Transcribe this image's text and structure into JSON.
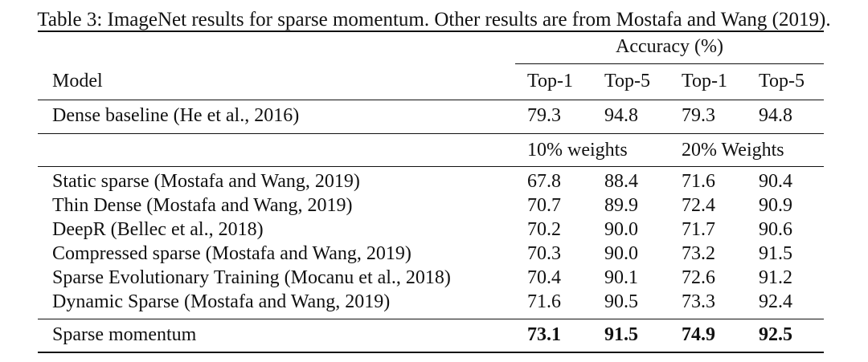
{
  "caption": "Table 3: ImageNet results for sparse momentum. Other results are from Mostafa and Wang (2019).",
  "header": {
    "accuracy_label": "Accuracy (%)",
    "model_label": "Model",
    "cols": [
      "Top-1",
      "Top-5",
      "Top-1",
      "Top-5"
    ]
  },
  "baseline": {
    "model": "Dense baseline (He et al., 2016)",
    "values": [
      "79.3",
      "94.8",
      "79.3",
      "94.8"
    ]
  },
  "groups": {
    "weights_10": "10% weights",
    "weights_20": "20% Weights"
  },
  "rows": [
    {
      "model": "Static sparse (Mostafa and Wang, 2019)",
      "values": [
        "67.8",
        "88.4",
        "71.6",
        "90.4"
      ]
    },
    {
      "model": "Thin Dense (Mostafa and Wang, 2019)",
      "values": [
        "70.7",
        "89.9",
        "72.4",
        "90.9"
      ]
    },
    {
      "model": "DeepR (Bellec et al., 2018)",
      "values": [
        "70.2",
        "90.0",
        "71.7",
        "90.6"
      ]
    },
    {
      "model": "Compressed sparse (Mostafa and Wang, 2019)",
      "values": [
        "70.3",
        "90.0",
        "73.2",
        "91.5"
      ]
    },
    {
      "model": "Sparse Evolutionary Training (Mocanu et al., 2018)",
      "values": [
        "70.4",
        "90.1",
        "72.6",
        "91.2"
      ]
    },
    {
      "model": "Dynamic Sparse (Mostafa and Wang, 2019)",
      "values": [
        "71.6",
        "90.5",
        "73.3",
        "92.4"
      ]
    }
  ],
  "final": {
    "model": "Sparse momentum",
    "values": [
      "73.1",
      "91.5",
      "74.9",
      "92.5"
    ]
  }
}
